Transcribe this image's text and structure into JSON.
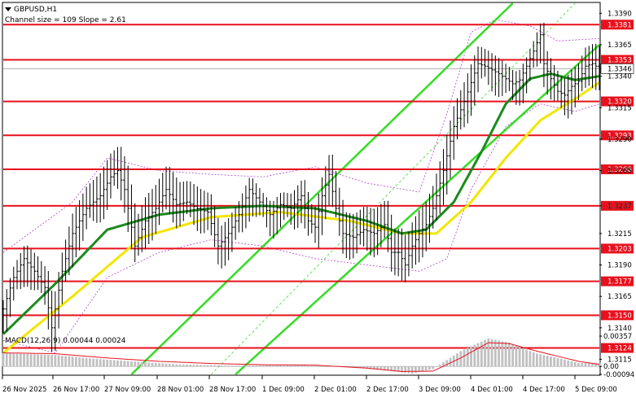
{
  "header": {
    "title": "GBPUSD,H1",
    "subtitle": "Channel size = 109 Slope = 2.61"
  },
  "colors": {
    "level_line": "#e8101c",
    "channel": "#33dd22",
    "ma_fast": "#1d8a1d",
    "ma_slow": "#f2e600",
    "bars": "#000000",
    "bollinger": "#b044c8",
    "macd_hist": "#c0c0c0",
    "macd_signal": "#e8101c"
  },
  "chart_data": [
    {
      "type": "line",
      "title": "GBPUSD,H1",
      "ylim": [
        1.3103,
        1.3398
      ],
      "y_ticks": [
        "1.3390",
        "1.3365",
        "1.3340",
        "1.3315",
        "1.3290",
        "1.3265",
        "1.3237",
        "1.3215",
        "1.3190",
        "1.3165",
        "1.3140",
        "1.3115"
      ],
      "x_ticks": [
        "26 Nov 2025",
        "26 Nov 17:00",
        "27 Nov 09:00",
        "28 Nov 01:00",
        "28 Nov 17:00",
        "1 Dec 09:00",
        "2 Dec 01:00",
        "2 Dec 17:00",
        "3 Dec 09:00",
        "4 Dec 01:00",
        "4 Dec 17:00",
        "5 Dec 09:00"
      ],
      "levels": [
        {
          "label": "1.3381",
          "value": 1.3381
        },
        {
          "label": "1.3353",
          "value": 1.3353
        },
        {
          "label": "1.3320",
          "value": 1.332
        },
        {
          "label": "1.3293",
          "value": 1.3293
        },
        {
          "label": "1.3266",
          "value": 1.3266
        },
        {
          "label": "1.3237",
          "value": 1.3237
        },
        {
          "label": "1.3203",
          "value": 1.3203
        },
        {
          "label": "1.3177",
          "value": 1.3177
        },
        {
          "label": "1.3150",
          "value": 1.315
        },
        {
          "label": "1.3124",
          "value": 1.3124
        }
      ],
      "current_price": {
        "label": "1.3346",
        "value": 1.3346
      },
      "price_anchors": [
        [
          0,
          1.3155
        ],
        [
          3,
          1.318
        ],
        [
          6,
          1.3195
        ],
        [
          9,
          1.3185
        ],
        [
          12,
          1.3172
        ],
        [
          14,
          1.314
        ],
        [
          17,
          1.3185
        ],
        [
          20,
          1.3215
        ],
        [
          24,
          1.3235
        ],
        [
          28,
          1.3245
        ],
        [
          31,
          1.326
        ],
        [
          33,
          1.3265
        ],
        [
          35,
          1.325
        ],
        [
          38,
          1.3205
        ],
        [
          41,
          1.3225
        ],
        [
          44,
          1.3235
        ],
        [
          47,
          1.325
        ],
        [
          50,
          1.3238
        ],
        [
          53,
          1.324
        ],
        [
          56,
          1.3235
        ],
        [
          59,
          1.3232
        ],
        [
          62,
          1.3205
        ],
        [
          65,
          1.3215
        ],
        [
          68,
          1.323
        ],
        [
          71,
          1.325
        ],
        [
          74,
          1.324
        ],
        [
          77,
          1.323
        ],
        [
          80,
          1.3238
        ],
        [
          83,
          1.3235
        ],
        [
          86,
          1.3245
        ],
        [
          88,
          1.3225
        ],
        [
          90,
          1.322
        ],
        [
          92,
          1.3245
        ],
        [
          94,
          1.3262
        ],
        [
          96,
          1.3235
        ],
        [
          98,
          1.3215
        ],
        [
          101,
          1.3212
        ],
        [
          104,
          1.3218
        ],
        [
          107,
          1.3215
        ],
        [
          110,
          1.3222
        ],
        [
          112,
          1.32
        ],
        [
          114,
          1.32
        ],
        [
          116,
          1.319
        ],
        [
          118,
          1.3205
        ],
        [
          120,
          1.3215
        ],
        [
          122,
          1.3222
        ],
        [
          124,
          1.3235
        ],
        [
          127,
          1.3265
        ],
        [
          130,
          1.33
        ],
        [
          133,
          1.332
        ],
        [
          135,
          1.3335
        ],
        [
          137,
          1.335
        ],
        [
          139,
          1.3348
        ],
        [
          141,
          1.3345
        ],
        [
          143,
          1.3342
        ],
        [
          145,
          1.3338
        ],
        [
          147,
          1.3334
        ],
        [
          149,
          1.3337
        ],
        [
          151,
          1.3348
        ],
        [
          153,
          1.336
        ],
        [
          155,
          1.3373
        ],
        [
          156,
          1.335
        ],
        [
          158,
          1.3338
        ],
        [
          160,
          1.3328
        ],
        [
          162,
          1.3325
        ],
        [
          164,
          1.3332
        ],
        [
          166,
          1.3336
        ],
        [
          168,
          1.3348
        ],
        [
          170,
          1.335
        ],
        [
          172,
          1.3346
        ]
      ],
      "ma_fast": [
        [
          0,
          1.3135
        ],
        [
          15,
          1.3175
        ],
        [
          30,
          1.3218
        ],
        [
          45,
          1.323
        ],
        [
          60,
          1.3235
        ],
        [
          75,
          1.3237
        ],
        [
          90,
          1.3235
        ],
        [
          105,
          1.3225
        ],
        [
          115,
          1.3215
        ],
        [
          122,
          1.3218
        ],
        [
          130,
          1.324
        ],
        [
          138,
          1.328
        ],
        [
          145,
          1.3318
        ],
        [
          152,
          1.3338
        ],
        [
          158,
          1.3342
        ],
        [
          165,
          1.3337
        ],
        [
          172,
          1.334
        ]
      ],
      "ma_slow": [
        [
          0,
          1.312
        ],
        [
          20,
          1.3165
        ],
        [
          40,
          1.3212
        ],
        [
          60,
          1.3228
        ],
        [
          80,
          1.3232
        ],
        [
          100,
          1.3225
        ],
        [
          115,
          1.3215
        ],
        [
          125,
          1.3215
        ],
        [
          135,
          1.324
        ],
        [
          145,
          1.3275
        ],
        [
          155,
          1.3305
        ],
        [
          165,
          1.3322
        ],
        [
          172,
          1.3335
        ]
      ],
      "bollinger_upper": [
        [
          0,
          1.32
        ],
        [
          20,
          1.324
        ],
        [
          30,
          1.3275
        ],
        [
          45,
          1.3265
        ],
        [
          60,
          1.3262
        ],
        [
          75,
          1.326
        ],
        [
          90,
          1.3268
        ],
        [
          105,
          1.3255
        ],
        [
          120,
          1.3248
        ],
        [
          128,
          1.331
        ],
        [
          135,
          1.3375
        ],
        [
          142,
          1.3385
        ],
        [
          152,
          1.338
        ],
        [
          160,
          1.3368
        ],
        [
          172,
          1.337
        ]
      ],
      "bollinger_lower": [
        [
          0,
          1.313
        ],
        [
          15,
          1.312
        ],
        [
          30,
          1.318
        ],
        [
          45,
          1.32
        ],
        [
          60,
          1.321
        ],
        [
          75,
          1.3205
        ],
        [
          90,
          1.3195
        ],
        [
          105,
          1.319
        ],
        [
          120,
          1.3185
        ],
        [
          128,
          1.3195
        ],
        [
          135,
          1.325
        ],
        [
          145,
          1.33
        ],
        [
          155,
          1.3318
        ],
        [
          165,
          1.3312
        ],
        [
          172,
          1.3318
        ]
      ],
      "channel_lines": [
        {
          "from": [
            37,
            1.3103
          ],
          "to": [
            147,
            1.3398
          ]
        },
        {
          "from": [
            67,
            1.3103
          ],
          "to": [
            172,
            1.3365
          ]
        },
        {
          "from": [
            60,
            1.3103
          ],
          "to": [
            165,
            1.3398
          ],
          "dashed": true
        }
      ]
    },
    {
      "type": "bar",
      "title": "MACD(12,26,9) 0.00044 0.00024",
      "ylim": [
        -0.00094,
        0.00357
      ],
      "y_ticks": [
        "0.00357",
        "0.00",
        "-0.00094"
      ],
      "histogram_anchors": [
        [
          0,
          0.00155
        ],
        [
          15,
          0.00135
        ],
        [
          25,
          0.00095
        ],
        [
          35,
          0.00065
        ],
        [
          50,
          0.00025
        ],
        [
          65,
          0.0001
        ],
        [
          80,
          0.00015
        ],
        [
          95,
          5e-05
        ],
        [
          110,
          -0.00045
        ],
        [
          118,
          -0.00085
        ],
        [
          124,
          -0.0003
        ],
        [
          132,
          0.0018
        ],
        [
          140,
          0.0033
        ],
        [
          146,
          0.0028
        ],
        [
          154,
          0.0015
        ],
        [
          160,
          0.001
        ],
        [
          166,
          0.0004
        ],
        [
          172,
          0.00044
        ]
      ],
      "signal_anchors": [
        [
          0,
          0.0016
        ],
        [
          15,
          0.0015
        ],
        [
          30,
          0.001
        ],
        [
          45,
          0.0006
        ],
        [
          60,
          0.00035
        ],
        [
          75,
          0.0002
        ],
        [
          90,
          0.00015
        ],
        [
          105,
          -0.0002
        ],
        [
          115,
          -0.0006
        ],
        [
          124,
          -0.00055
        ],
        [
          132,
          0.001
        ],
        [
          140,
          0.0028
        ],
        [
          146,
          0.0027
        ],
        [
          154,
          0.0018
        ],
        [
          160,
          0.0012
        ],
        [
          166,
          0.0006
        ],
        [
          172,
          0.00024
        ]
      ]
    }
  ]
}
